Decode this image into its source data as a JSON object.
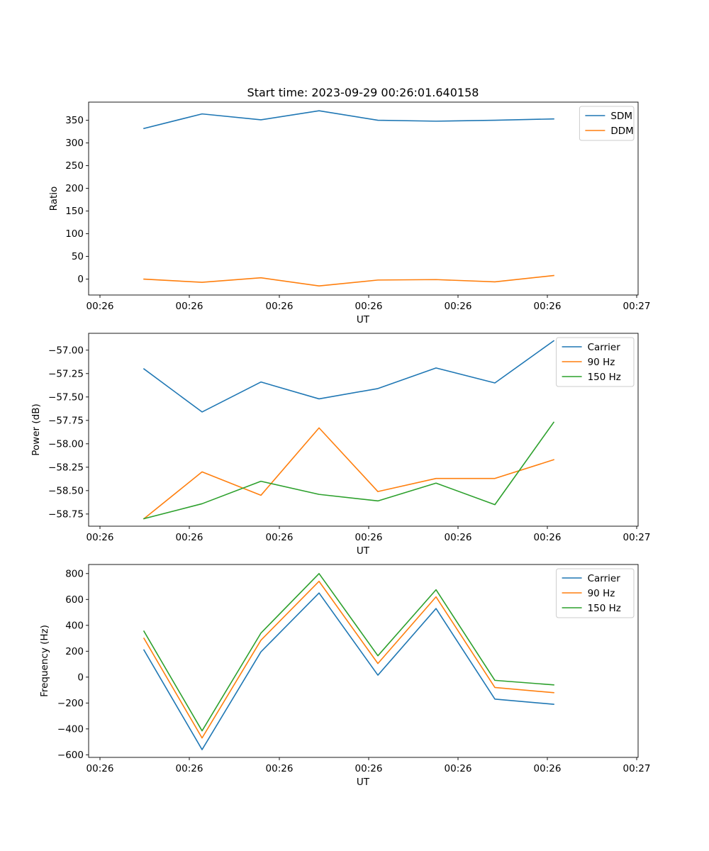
{
  "figure_title": "Start time: 2023-09-29 00:26:01.640158",
  "colors": {
    "blue": "#1f77b4",
    "orange": "#ff7f0e",
    "green": "#2ca02c"
  },
  "chart_data": [
    {
      "type": "line",
      "title": "Start time: 2023-09-29 00:26:01.640158",
      "xlabel": "UT",
      "ylabel": "Ratio",
      "x_ticks": [
        "00:26",
        "00:26",
        "00:26",
        "00:26",
        "00:26",
        "00:26",
        "00:27"
      ],
      "y_ticks": [
        0,
        50,
        100,
        150,
        200,
        250,
        300,
        350
      ],
      "y_tick_labels": [
        "0",
        "50",
        "100",
        "150",
        "200",
        "250",
        "300",
        "350"
      ],
      "ylim": [
        -35,
        390
      ],
      "legend": "top-right",
      "series": [
        {
          "name": "SDM",
          "color": "#1f77b4",
          "values": [
            332,
            364,
            351,
            371,
            350,
            348,
            350,
            353
          ]
        },
        {
          "name": "DDM",
          "color": "#ff7f0e",
          "values": [
            0,
            -7,
            3,
            -15,
            -2,
            -1,
            -6,
            8
          ]
        }
      ]
    },
    {
      "type": "line",
      "title": "",
      "xlabel": "UT",
      "ylabel": "Power (dB)",
      "x_ticks": [
        "00:26",
        "00:26",
        "00:26",
        "00:26",
        "00:26",
        "00:26",
        "00:27"
      ],
      "y_ticks": [
        -58.75,
        -58.5,
        -58.25,
        -58.0,
        -57.75,
        -57.5,
        -57.25,
        -57.0
      ],
      "y_tick_labels": [
        "−58.75",
        "−58.50",
        "−58.25",
        "−58.00",
        "−57.75",
        "−57.50",
        "−57.25",
        "−57.00"
      ],
      "ylim": [
        -58.88,
        -56.82
      ],
      "legend": "top-right",
      "series": [
        {
          "name": "Carrier",
          "color": "#1f77b4",
          "values": [
            -57.2,
            -57.66,
            -57.34,
            -57.52,
            -57.41,
            -57.19,
            -57.35,
            -56.9
          ]
        },
        {
          "name": "90 Hz",
          "color": "#ff7f0e",
          "values": [
            -58.8,
            -58.3,
            -58.55,
            -57.83,
            -58.51,
            -58.37,
            -58.37,
            -58.17
          ]
        },
        {
          "name": "150 Hz",
          "color": "#2ca02c",
          "values": [
            -58.8,
            -58.64,
            -58.4,
            -58.54,
            -58.61,
            -58.42,
            -58.65,
            -57.77
          ]
        }
      ]
    },
    {
      "type": "line",
      "title": "",
      "xlabel": "UT",
      "ylabel": "Frequency (Hz)",
      "x_ticks": [
        "00:26",
        "00:26",
        "00:26",
        "00:26",
        "00:26",
        "00:26",
        "00:27"
      ],
      "y_ticks": [
        -600,
        -400,
        -200,
        0,
        200,
        400,
        600,
        800
      ],
      "y_tick_labels": [
        "−600",
        "−400",
        "−200",
        "0",
        "200",
        "400",
        "600",
        "800"
      ],
      "ylim": [
        -620,
        870
      ],
      "legend": "top-right",
      "series": [
        {
          "name": "Carrier",
          "color": "#1f77b4",
          "values": [
            210,
            -560,
            195,
            650,
            15,
            530,
            -170,
            -210
          ]
        },
        {
          "name": "90 Hz",
          "color": "#ff7f0e",
          "values": [
            300,
            -470,
            285,
            740,
            105,
            620,
            -80,
            -120
          ]
        },
        {
          "name": "150 Hz",
          "color": "#2ca02c",
          "values": [
            355,
            -415,
            340,
            800,
            165,
            675,
            -25,
            -60
          ]
        }
      ]
    }
  ]
}
